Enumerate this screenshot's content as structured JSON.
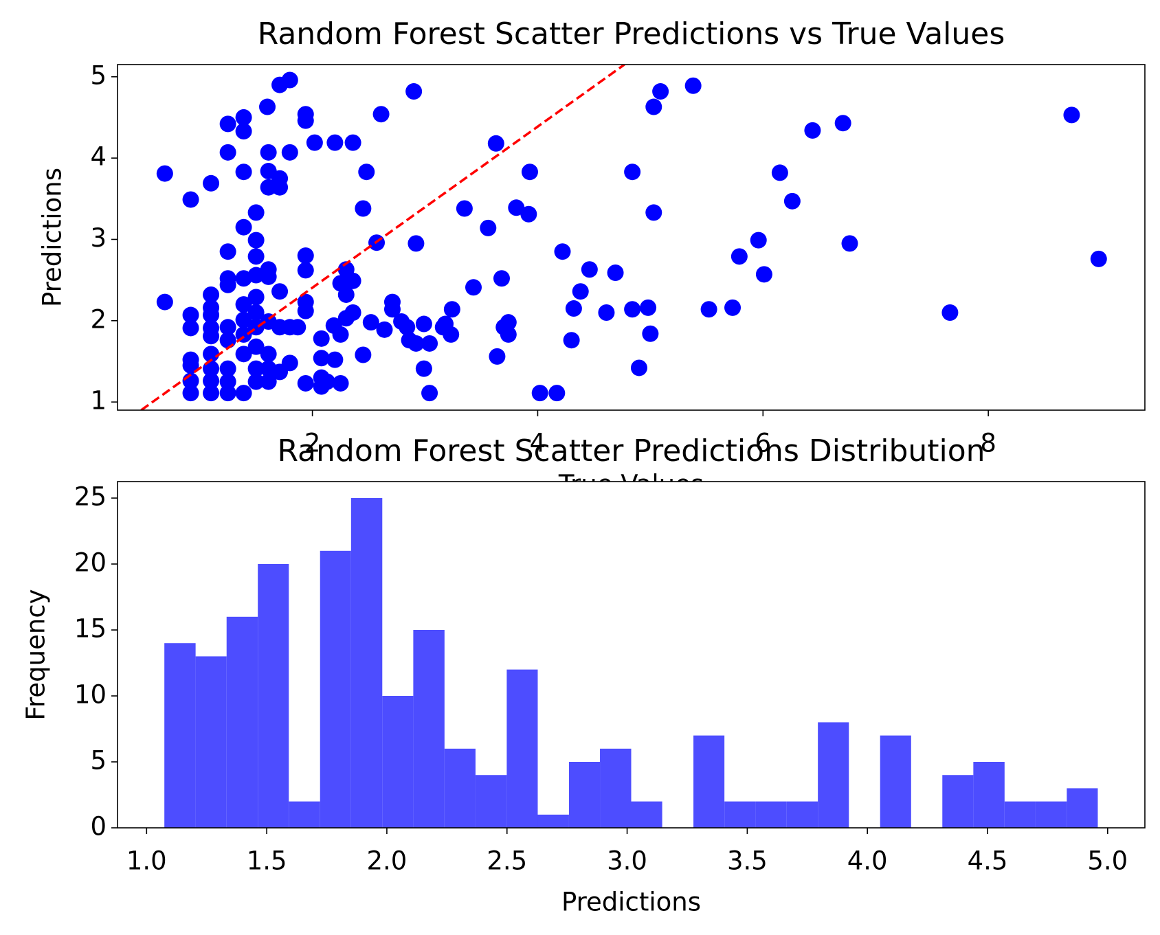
{
  "chart_data": [
    {
      "type": "scatter",
      "title": "Random Forest Scatter Predictions vs True Values",
      "x_label": "True Values",
      "y_label": "Predictions",
      "color": "#0000ff",
      "x": [
        0.69,
        0.69,
        0.92,
        1.1,
        1.25,
        1.39,
        1.39,
        1.25,
        1.39,
        1.39,
        1.25,
        1.5,
        1.5,
        1.5,
        1.6,
        1.71,
        1.8,
        1.61,
        1.8,
        1.61,
        1.71,
        1.61,
        1.71,
        1.94,
        1.94,
        2.02,
        2.2,
        2.36,
        2.48,
        2.45,
        2.61,
        2.9,
        2.57,
        2.92,
        2.3,
        2.25,
        2.36,
        2.3,
        2.36,
        2.3,
        2.19,
        2.25,
        2.08,
        2.08,
        2.2,
        2.08,
        2.13,
        2.25,
        2.08,
        1.94,
        2.45,
        2.52,
        2.64,
        2.71,
        2.71,
        2.79,
        2.84,
        2.86,
        2.92,
        2.99,
        3.04,
        2.99,
        3.04,
        3.16,
        3.23,
        3.24,
        3.18,
        3.35,
        3.56,
        3.63,
        3.43,
        3.68,
        3.7,
        3.74,
        3.74,
        3.64,
        3.81,
        3.92,
        3.93,
        4.02,
        4.17,
        4.22,
        4.38,
        4.46,
        4.32,
        4.3,
        4.61,
        4.69,
        4.84,
        4.84,
        4.98,
        5.0,
        4.9,
        5.03,
        5.09,
        5.03,
        5.38,
        5.52,
        5.73,
        5.79,
        5.96,
        6.01,
        6.15,
        6.26,
        6.44,
        6.71,
        6.77,
        7.66,
        8.74,
        8.98,
        0.92,
        0.92,
        0.92,
        0.92,
        0.92,
        0.92,
        1.1,
        1.1,
        1.1,
        1.1,
        1.1,
        1.1,
        1.1,
        1.1,
        1.1,
        1.25,
        1.25,
        1.25,
        1.25,
        1.25,
        1.25,
        1.25,
        1.39,
        1.39,
        1.39,
        1.39,
        1.39,
        1.39,
        1.5,
        1.5,
        1.5,
        1.5,
        1.5,
        1.5,
        1.5,
        1.61,
        1.61,
        1.61,
        1.61,
        1.61,
        1.61,
        1.71,
        1.71,
        1.71,
        1.8,
        1.8,
        1.87,
        1.94,
        1.94,
        1.94,
        1.94
      ],
      "values": [
        3.81,
        2.23,
        3.49,
        3.69,
        4.42,
        4.5,
        4.33,
        4.07,
        3.83,
        3.15,
        2.85,
        3.33,
        2.99,
        2.79,
        4.63,
        4.9,
        4.96,
        4.07,
        4.07,
        3.84,
        3.75,
        3.64,
        3.64,
        4.54,
        4.46,
        4.19,
        4.19,
        4.19,
        3.83,
        3.38,
        4.54,
        4.82,
        2.96,
        2.95,
        2.63,
        2.46,
        2.49,
        2.32,
        2.1,
        2.03,
        1.94,
        1.83,
        1.78,
        1.54,
        1.52,
        1.3,
        1.25,
        1.23,
        1.19,
        1.23,
        1.58,
        1.98,
        1.89,
        2.23,
        2.14,
        1.99,
        1.92,
        1.76,
        1.72,
        1.96,
        1.72,
        1.41,
        1.11,
        1.92,
        1.83,
        2.14,
        1.96,
        3.38,
        3.14,
        4.18,
        2.41,
        2.52,
        1.92,
        1.98,
        1.83,
        1.56,
        3.39,
        3.31,
        3.83,
        1.11,
        1.11,
        2.85,
        2.36,
        2.63,
        2.15,
        1.76,
        2.1,
        2.59,
        3.83,
        2.14,
        2.16,
        1.84,
        1.42,
        4.63,
        4.82,
        3.33,
        4.89,
        2.14,
        2.16,
        2.79,
        2.99,
        2.57,
        3.82,
        3.47,
        4.34,
        4.43,
        2.95,
        2.1,
        4.53,
        2.76,
        2.07,
        1.91,
        1.52,
        1.45,
        1.26,
        1.11,
        2.32,
        2.16,
        2.07,
        1.91,
        1.81,
        1.59,
        1.41,
        1.26,
        1.11,
        2.52,
        2.44,
        1.92,
        1.76,
        1.41,
        1.25,
        1.11,
        2.52,
        2.2,
        2.01,
        1.83,
        1.59,
        1.11,
        2.56,
        2.29,
        2.1,
        1.92,
        1.68,
        1.41,
        1.25,
        2.63,
        2.54,
        1.99,
        1.59,
        1.41,
        1.25,
        2.36,
        1.92,
        1.37,
        1.92,
        1.48,
        1.92,
        2.8,
        2.62,
        2.23,
        2.12
      ],
      "reference_line": {
        "x": [
          0.48,
          4.77
        ],
        "y": [
          0.9,
          5.15
        ],
        "color": "#ff0000"
      },
      "xlim": [
        0.27,
        9.39
      ],
      "ylim": [
        0.9,
        5.15
      ],
      "xticks": [
        2,
        4,
        6,
        8
      ],
      "yticks": [
        1,
        2,
        3,
        4,
        5
      ]
    },
    {
      "type": "histogram",
      "title": "Random Forest Scatter Predictions Distribution",
      "x_label": "Predictions",
      "y_label": "Frequency",
      "color": "#4d4dff",
      "bins": [
        1.074,
        1.204,
        1.333,
        1.463,
        1.592,
        1.722,
        1.851,
        1.981,
        2.11,
        2.24,
        2.369,
        2.499,
        2.628,
        2.758,
        2.887,
        3.017,
        3.146,
        3.276,
        3.405,
        3.535,
        3.664,
        3.794,
        3.923,
        4.053,
        4.182,
        4.312,
        4.441,
        4.571,
        4.7,
        4.83,
        4.959
      ],
      "values": [
        14,
        13,
        16,
        20,
        2,
        21,
        25,
        10,
        15,
        6,
        4,
        12,
        1,
        5,
        6,
        2,
        0,
        7,
        2,
        2,
        2,
        8,
        0,
        7,
        0,
        4,
        5,
        2,
        2,
        3
      ],
      "xlim": [
        0.879,
        5.155
      ],
      "ylim": [
        0,
        26.25
      ],
      "xticks": [
        {
          "value": 1.0,
          "label": "1.0"
        },
        {
          "value": 1.5,
          "label": "1.5"
        },
        {
          "value": 2.0,
          "label": "2.0"
        },
        {
          "value": 2.5,
          "label": "2.5"
        },
        {
          "value": 3.0,
          "label": "3.0"
        },
        {
          "value": 3.5,
          "label": "3.5"
        },
        {
          "value": 4.0,
          "label": "4.0"
        },
        {
          "value": 4.5,
          "label": "4.5"
        },
        {
          "value": 5.0,
          "label": "5.0"
        }
      ],
      "yticks": [
        0,
        5,
        10,
        15,
        20,
        25
      ]
    }
  ]
}
